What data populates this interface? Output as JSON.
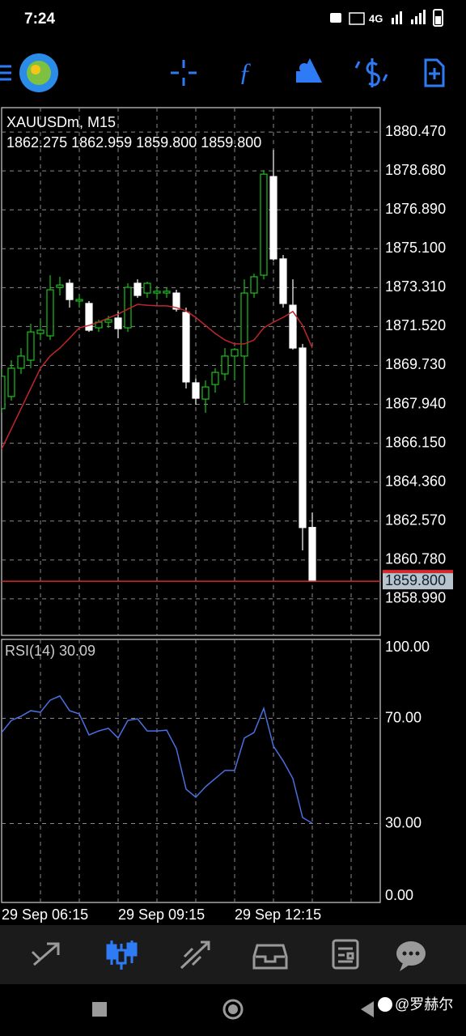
{
  "status_bar": {
    "time": "7:24",
    "network": "4G"
  },
  "watermark": "@罗赫尔",
  "chart_data": [
    {
      "type": "candlestick",
      "title": "XAUUSDm, M15",
      "subtitle": "1862.275 1862.959 1859.800 1859.800",
      "categories": [
        "29 Sep 06:15",
        null,
        null,
        null,
        null,
        null,
        null,
        null,
        null,
        null,
        null,
        null,
        "29 Sep 09:15",
        null,
        null,
        null,
        null,
        null,
        null,
        null,
        null,
        null,
        null,
        null,
        "29 Sep 12:15",
        null,
        null,
        null,
        null,
        null,
        null,
        null,
        null
      ],
      "open": [
        1867.74,
        1868.3,
        1869.6,
        1869.97,
        1871.2,
        1871.09,
        1873.32,
        1873.51,
        1872.69,
        1872.58,
        1871.46,
        1871.72,
        1871.91,
        1871.46,
        1873.51,
        1873.06,
        1873.06,
        1873.06,
        1873.06,
        1872.17,
        1868.93,
        1868.18,
        1868.85,
        1869.34,
        1870.16,
        1870.16,
        1873.06,
        1873.88,
        1878.42,
        1874.63,
        1872.5,
        1870.53,
        1862.275
      ],
      "high": [
        1869.6,
        1869.97,
        1870.53,
        1871.65,
        1871.83,
        1873.88,
        1873.81,
        1873.69,
        1872.95,
        1872.69,
        1871.83,
        1872.02,
        1872.21,
        1873.51,
        1873.69,
        1873.58,
        1873.32,
        1873.32,
        1873.21,
        1872.39,
        1869.12,
        1869.04,
        1869.6,
        1870.53,
        1870.53,
        1873.69,
        1873.95,
        1878.72,
        1879.65,
        1874.81,
        1873.69,
        1870.72,
        1862.959
      ],
      "low": [
        1867.55,
        1868.11,
        1869.34,
        1869.6,
        1870.9,
        1870.9,
        1872.95,
        1872.39,
        1872.39,
        1871.27,
        1871.27,
        1871.46,
        1870.98,
        1871.27,
        1872.84,
        1872.84,
        1872.76,
        1872.84,
        1872.21,
        1868.67,
        1867.92,
        1867.55,
        1868.48,
        1869.04,
        1869.04,
        1868.0,
        1872.84,
        1873.69,
        1874.55,
        1872.39,
        1870.46,
        1861.22,
        1859.8
      ],
      "close": [
        1869.23,
        1869.6,
        1870.16,
        1871.27,
        1871.35,
        1873.21,
        1873.43,
        1872.76,
        1872.76,
        1871.35,
        1871.72,
        1871.83,
        1871.42,
        1873.32,
        1872.95,
        1873.51,
        1873.14,
        1873.14,
        1872.32,
        1868.97,
        1868.22,
        1868.74,
        1869.41,
        1870.16,
        1870.46,
        1873.06,
        1873.81,
        1878.53,
        1874.63,
        1872.58,
        1870.53,
        1862.27,
        1859.8
      ],
      "ma_values": [
        1865.88,
        1866.81,
        1867.74,
        1868.67,
        1869.6,
        1870.16,
        1870.53,
        1870.98,
        1871.46,
        1871.57,
        1871.72,
        1871.91,
        1872.09,
        1872.32,
        1872.54,
        1872.5,
        1872.47,
        1872.47,
        1872.39,
        1872.24,
        1871.94,
        1871.57,
        1871.2,
        1870.9,
        1870.72,
        1870.72,
        1870.9,
        1871.46,
        1871.72,
        1871.94,
        1872.21,
        1871.57,
        1870.53
      ],
      "ma_color": "#c0262b",
      "up_color": "#19c219",
      "down_color": "#ffffff",
      "last_price": {
        "value": 1859.8,
        "label": "1859.800"
      },
      "last_price_color": "#d8272d",
      "ylim": [
        1857.31,
        1881.59
      ],
      "yticks": [
        {
          "value": 1880.47,
          "label": "1880.470"
        },
        {
          "value": 1878.68,
          "label": "1878.680"
        },
        {
          "value": 1876.89,
          "label": "1876.890"
        },
        {
          "value": 1875.1,
          "label": "1875.100"
        },
        {
          "value": 1873.31,
          "label": "1873.310"
        },
        {
          "value": 1871.52,
          "label": "1871.520"
        },
        {
          "value": 1869.73,
          "label": "1869.730"
        },
        {
          "value": 1867.94,
          "label": "1867.940"
        },
        {
          "value": 1866.15,
          "label": "1866.150"
        },
        {
          "value": 1864.36,
          "label": "1864.360"
        },
        {
          "value": 1862.57,
          "label": "1862.570"
        },
        {
          "value": 1860.78,
          "label": "1860.780"
        },
        {
          "value": 1858.99,
          "label": "1858.990"
        }
      ],
      "grid": true
    },
    {
      "type": "line",
      "title": "RSI(14) 30.09",
      "values": [
        64.6,
        69.2,
        70.8,
        72.9,
        72.3,
        76.9,
        78.5,
        72.9,
        71.7,
        63.7,
        65.2,
        66.2,
        62.5,
        69.2,
        69.8,
        65.2,
        65.2,
        65.5,
        58.5,
        43.1,
        40.0,
        44.0,
        47.1,
        50.2,
        50.2,
        62.5,
        64.6,
        73.8,
        59.4,
        53.8,
        47.1,
        32.3,
        30.09
      ],
      "color": "#4a6fe0",
      "ylim": [
        0,
        100
      ],
      "yticks": [
        {
          "value": 100,
          "label": "100.00"
        },
        {
          "value": 70,
          "label": "70.00"
        },
        {
          "value": 30,
          "label": "30.00"
        },
        {
          "value": 0,
          "label": "0.00"
        }
      ],
      "grid": true
    }
  ]
}
